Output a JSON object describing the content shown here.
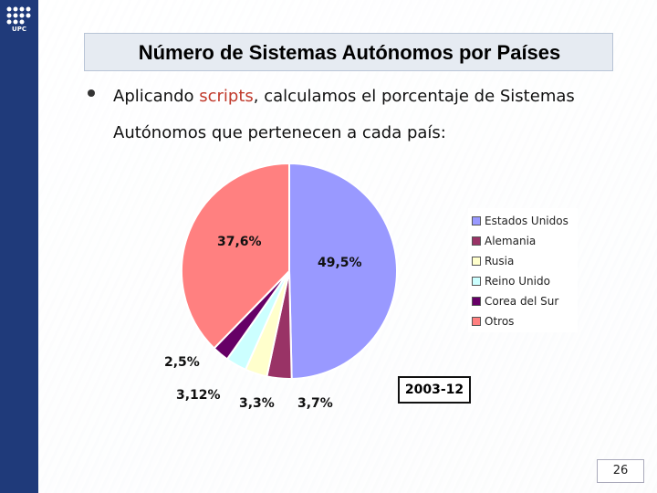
{
  "logo": {
    "text": "UPC"
  },
  "slide": {
    "title": "Número de Sistemas Autónomos por Países",
    "bullet_part1": "Aplicando ",
    "bullet_highlight": "scripts",
    "bullet_part2": ", calculamos el porcentaje de Sistemas Autónomos que pertenecen a cada país:",
    "date_label": "2003-12",
    "page_number": "26"
  },
  "colors": {
    "sidebar": "#1f3a7a",
    "highlight": "#c0392b"
  },
  "chart_data": {
    "type": "pie",
    "series": [
      {
        "name": "Estados Unidos",
        "value": 49.5,
        "label": "49,5%",
        "color": "#9999ff"
      },
      {
        "name": "Alemania",
        "value": 3.7,
        "label": "3,7%",
        "color": "#993366"
      },
      {
        "name": "Rusia",
        "value": 3.3,
        "label": "3,3%",
        "color": "#ffffcc"
      },
      {
        "name": "Reino Unido",
        "value": 3.12,
        "label": "3,12%",
        "color": "#ccffff"
      },
      {
        "name": "Corea del Sur",
        "value": 2.5,
        "label": "2,5%",
        "color": "#660066"
      },
      {
        "name": "Otros",
        "value": 37.6,
        "label": "37,6%",
        "color": "#ff8080"
      }
    ],
    "legend_position": "right"
  }
}
